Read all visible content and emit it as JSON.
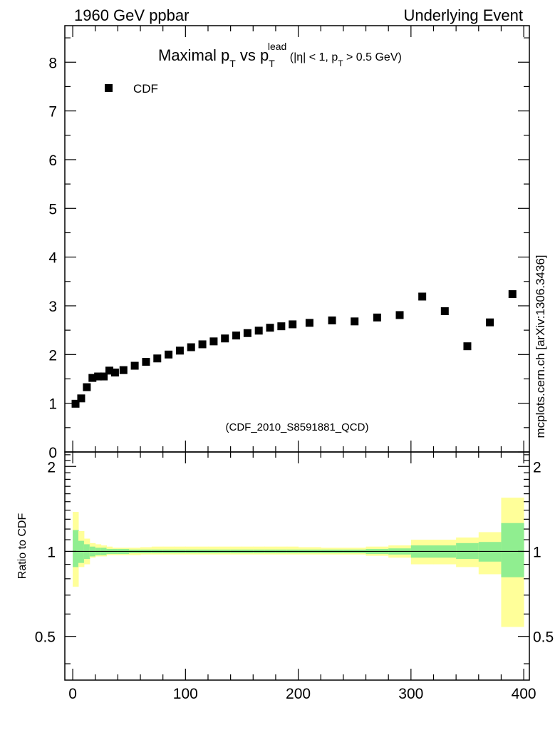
{
  "header": {
    "left": "1960 GeV ppbar",
    "right": "Underlying Event"
  },
  "watermark": "mcplots.cern.ch [arXiv:1306.3436]",
  "analysis_id": "(CDF_2010_S8591881_QCD)",
  "colors": {
    "marker": "#000000",
    "band_inner": "#90ee90",
    "band_outer": "#ffff99",
    "analysis_id": "#999999",
    "watermark": "#777777"
  },
  "chart_data": [
    {
      "type": "scatter",
      "title": {
        "main": "Maximal p",
        "main_sub": "T",
        "mid": " vs p",
        "mid_sub": "T",
        "mid_sup": "lead",
        "cond_a": " (|η| < 1, p",
        "cond_sub": "T",
        "cond_b": " > 0.5 GeV)"
      },
      "xlabel": "",
      "ylabel": "",
      "xlim": [
        -7,
        405
      ],
      "ylim": [
        0,
        8.75
      ],
      "x_ticks": [
        0,
        100,
        200,
        300,
        400
      ],
      "y_ticks": [
        0,
        1,
        2,
        3,
        4,
        5,
        6,
        7,
        8
      ],
      "grid": false,
      "legend": {
        "position": "top-left",
        "entries": [
          "CDF"
        ]
      },
      "series": [
        {
          "name": "CDF",
          "x": [
            2.5,
            7.5,
            12.5,
            17.5,
            22.5,
            27.5,
            32.5,
            37.5,
            45,
            55,
            65,
            75,
            85,
            95,
            105,
            115,
            125,
            135,
            145,
            155,
            165,
            175,
            185,
            195,
            210,
            230,
            250,
            270,
            290,
            310,
            330,
            350,
            370,
            390
          ],
          "y": [
            0.99,
            1.1,
            1.33,
            1.52,
            1.55,
            1.55,
            1.67,
            1.63,
            1.68,
            1.77,
            1.85,
            1.92,
            2.0,
            2.08,
            2.15,
            2.21,
            2.27,
            2.33,
            2.39,
            2.44,
            2.49,
            2.55,
            2.58,
            2.62,
            2.65,
            2.7,
            2.68,
            2.76,
            2.81,
            3.19,
            2.89,
            2.17,
            2.66,
            3.24
          ]
        }
      ]
    },
    {
      "type": "area",
      "ylabel": "Ratio to CDF",
      "xlim": [
        -7,
        405
      ],
      "ylim": [
        0.35,
        2.25
      ],
      "x_ticks": [
        0,
        100,
        200,
        300,
        400
      ],
      "y_ticks": [
        0.5,
        1,
        2
      ],
      "reference_line": 1.0,
      "bins": {
        "edges": [
          0,
          5,
          10,
          15,
          20,
          25,
          30,
          35,
          40,
          50,
          60,
          70,
          80,
          90,
          100,
          110,
          120,
          130,
          140,
          150,
          160,
          170,
          180,
          190,
          200,
          220,
          240,
          260,
          280,
          300,
          320,
          340,
          360,
          380,
          400
        ],
        "inner_low": [
          0.88,
          0.91,
          0.94,
          0.96,
          0.97,
          0.97,
          0.98,
          0.98,
          0.98,
          0.985,
          0.985,
          0.985,
          0.985,
          0.985,
          0.985,
          0.985,
          0.985,
          0.985,
          0.985,
          0.985,
          0.985,
          0.985,
          0.985,
          0.985,
          0.985,
          0.985,
          0.985,
          0.98,
          0.975,
          0.95,
          0.95,
          0.94,
          0.92,
          0.81
        ],
        "inner_high": [
          1.19,
          1.09,
          1.06,
          1.04,
          1.03,
          1.03,
          1.02,
          1.02,
          1.02,
          1.015,
          1.015,
          1.015,
          1.015,
          1.015,
          1.015,
          1.015,
          1.015,
          1.015,
          1.015,
          1.015,
          1.015,
          1.015,
          1.015,
          1.015,
          1.015,
          1.015,
          1.015,
          1.02,
          1.025,
          1.05,
          1.05,
          1.07,
          1.08,
          1.26
        ],
        "outer_low": [
          0.75,
          0.88,
          0.9,
          0.95,
          0.96,
          0.96,
          0.97,
          0.97,
          0.97,
          0.97,
          0.975,
          0.975,
          0.975,
          0.975,
          0.975,
          0.975,
          0.975,
          0.975,
          0.975,
          0.975,
          0.975,
          0.975,
          0.975,
          0.975,
          0.975,
          0.975,
          0.975,
          0.965,
          0.95,
          0.9,
          0.9,
          0.88,
          0.83,
          0.54
        ],
        "outer_high": [
          1.38,
          1.18,
          1.11,
          1.07,
          1.06,
          1.05,
          1.04,
          1.03,
          1.03,
          1.03,
          1.035,
          1.04,
          1.04,
          1.04,
          1.04,
          1.04,
          1.04,
          1.04,
          1.04,
          1.04,
          1.04,
          1.04,
          1.04,
          1.04,
          1.035,
          1.03,
          1.03,
          1.04,
          1.05,
          1.1,
          1.1,
          1.12,
          1.17,
          1.55
        ]
      }
    }
  ]
}
